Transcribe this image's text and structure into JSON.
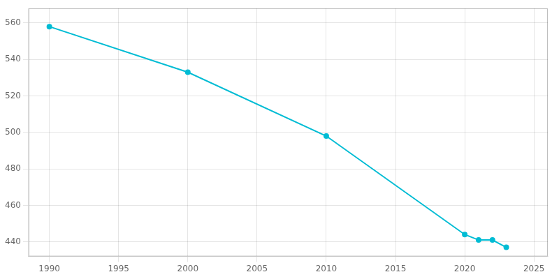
{
  "chart_data": {
    "type": "line",
    "x": [
      1990,
      2000,
      2010,
      2020,
      2021,
      2022,
      2023
    ],
    "values": [
      558,
      533,
      498,
      444,
      441,
      441,
      437
    ],
    "color": "#00BCD4",
    "marker": "circle",
    "xlim": [
      1988.5,
      2026
    ],
    "xticks": [
      1990,
      1995,
      2000,
      2005,
      2010,
      2015,
      2020,
      2025
    ],
    "ylim": [
      432,
      568
    ],
    "yticks": [
      440,
      460,
      480,
      500,
      520,
      540,
      560
    ],
    "grid": true
  }
}
